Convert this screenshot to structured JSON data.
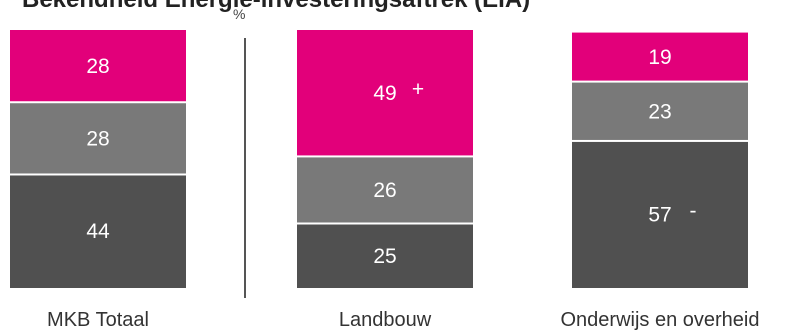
{
  "header": {
    "title": "Bekendheid Energie-investeringsaftrek (EIA)",
    "unit": "%"
  },
  "colors": {
    "bottom": "#505050",
    "middle": "#797979",
    "top": "#e2007a",
    "label": "#ffffff",
    "category": "#333333"
  },
  "chart_data": {
    "type": "bar",
    "stacked": true,
    "categories": [
      "MKB Totaal",
      "Landbouw",
      "Onderwijs en overheid"
    ],
    "series": [
      {
        "values": [
          44,
          25,
          57
        ]
      },
      {
        "values": [
          28,
          26,
          23
        ]
      },
      {
        "values": [
          28,
          49,
          19
        ]
      }
    ],
    "markers": [
      {
        "category": "Landbouw",
        "series_index": 2,
        "symbol": "+"
      },
      {
        "category": "Onderwijs en overheid",
        "series_index": 0,
        "symbol": "-"
      }
    ],
    "ylabel": "%",
    "ylim": [
      0,
      100
    ]
  }
}
